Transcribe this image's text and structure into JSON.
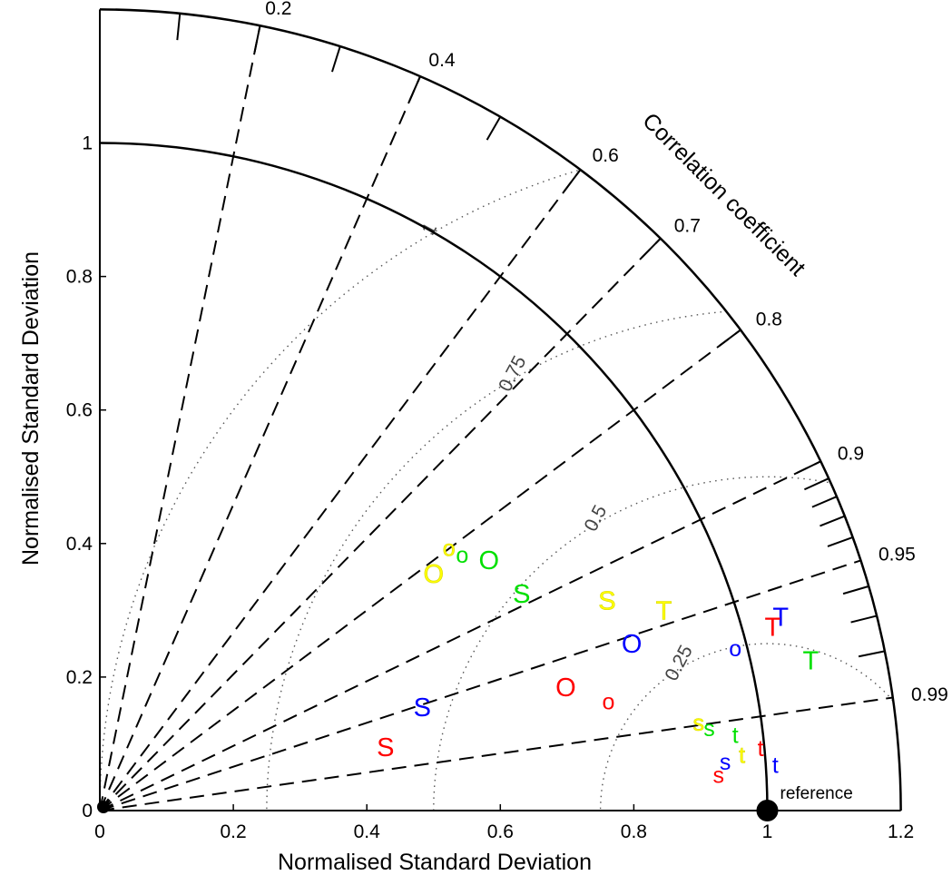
{
  "chart_data": {
    "type": "scatter",
    "subtype": "taylor-diagram",
    "xlabel": "Normalised Standard Deviation",
    "ylabel": "Normalised Standard Deviation",
    "correlation_title": "Correlation coefficient",
    "xlim": [
      0,
      1.2
    ],
    "ylim": [
      0,
      1.2
    ],
    "x_ticks": [
      "0",
      "0.2",
      "0.4",
      "0.6",
      "0.8",
      "1",
      "1.2"
    ],
    "y_ticks": [
      "0",
      "0.2",
      "0.4",
      "0.6",
      "0.8",
      "1"
    ],
    "std_arcs": [
      1.0,
      1.2
    ],
    "correlation_lines": [
      0.2,
      0.4,
      0.6,
      0.7,
      0.8,
      0.9,
      0.95,
      0.99
    ],
    "correlation_labels": [
      "0.2",
      "0.4",
      "0.6",
      "0.7",
      "0.8",
      "0.9",
      "0.95",
      "0.99"
    ],
    "rms_contours": [
      0.25,
      0.5,
      0.75,
      1.0
    ],
    "rms_labels": [
      "0.25",
      "0.5",
      "0.75",
      "1"
    ],
    "reference": {
      "std": 1.0,
      "corr": 1.0,
      "label": "reference"
    },
    "points": [
      {
        "label": "O",
        "color": "#ffff00",
        "x": 0.5,
        "y": 0.355,
        "size": "large"
      },
      {
        "label": "o",
        "color": "#ffff00",
        "x": 0.523,
        "y": 0.395,
        "size": "small"
      },
      {
        "label": "o",
        "color": "#00e000",
        "x": 0.543,
        "y": 0.385,
        "size": "small"
      },
      {
        "label": "O",
        "color": "#00e000",
        "x": 0.583,
        "y": 0.375,
        "size": "large"
      },
      {
        "label": "S",
        "color": "#00e000",
        "x": 0.632,
        "y": 0.325,
        "size": "large"
      },
      {
        "label": "S",
        "color": "#ffff00",
        "x": 0.76,
        "y": 0.315,
        "size": "large"
      },
      {
        "label": "T",
        "color": "#ffff00",
        "x": 0.845,
        "y": 0.3,
        "size": "large"
      },
      {
        "label": "O",
        "color": "#0000ff",
        "x": 0.797,
        "y": 0.25,
        "size": "large"
      },
      {
        "label": "o",
        "color": "#0000ff",
        "x": 0.952,
        "y": 0.245,
        "size": "small"
      },
      {
        "label": "T",
        "color": "#0000ff",
        "x": 1.02,
        "y": 0.29,
        "size": "large"
      },
      {
        "label": "T",
        "color": "#ff0000",
        "x": 1.008,
        "y": 0.275,
        "size": "large"
      },
      {
        "label": "T",
        "color": "#00e000",
        "x": 1.065,
        "y": 0.225,
        "size": "large"
      },
      {
        "label": "O",
        "color": "#ff0000",
        "x": 0.698,
        "y": 0.185,
        "size": "large"
      },
      {
        "label": "o",
        "color": "#ff0000",
        "x": 0.762,
        "y": 0.165,
        "size": "small"
      },
      {
        "label": "S",
        "color": "#0000ff",
        "x": 0.483,
        "y": 0.155,
        "size": "large"
      },
      {
        "label": "S",
        "color": "#ff0000",
        "x": 0.428,
        "y": 0.095,
        "size": "large"
      },
      {
        "label": "s",
        "color": "#ffff00",
        "x": 0.897,
        "y": 0.133,
        "size": "small"
      },
      {
        "label": "s",
        "color": "#00e000",
        "x": 0.913,
        "y": 0.125,
        "size": "small"
      },
      {
        "label": "t",
        "color": "#00e000",
        "x": 0.952,
        "y": 0.115,
        "size": "small"
      },
      {
        "label": "t",
        "color": "#ffff00",
        "x": 0.962,
        "y": 0.085,
        "size": "small"
      },
      {
        "label": "t",
        "color": "#ff0000",
        "x": 0.99,
        "y": 0.095,
        "size": "small"
      },
      {
        "label": "s",
        "color": "#0000ff",
        "x": 0.937,
        "y": 0.075,
        "size": "small"
      },
      {
        "label": "t",
        "color": "#0000ff",
        "x": 1.012,
        "y": 0.07,
        "size": "small"
      },
      {
        "label": "s",
        "color": "#ff0000",
        "x": 0.927,
        "y": 0.055,
        "size": "small"
      }
    ]
  }
}
